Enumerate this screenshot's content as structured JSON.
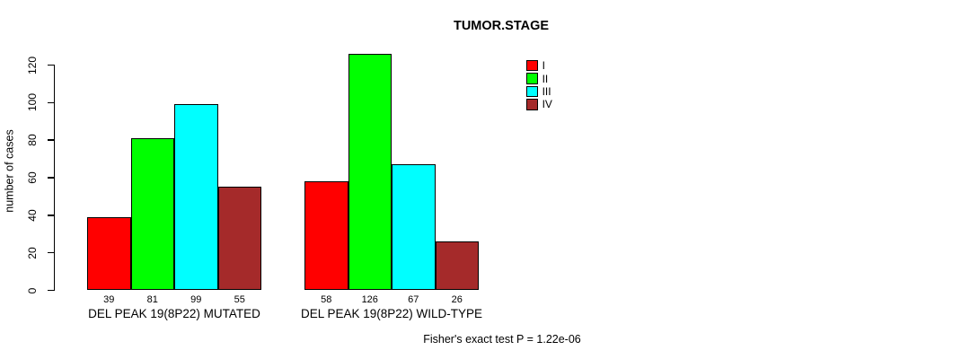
{
  "title": "TUMOR.STAGE",
  "y_axis": {
    "label": "number of cases",
    "ticks": [
      0,
      20,
      40,
      60,
      80,
      100,
      120
    ]
  },
  "legend": {
    "position": "top-right",
    "items": [
      {
        "label": "I",
        "color": "#FF0000"
      },
      {
        "label": "II",
        "color": "#00FF00"
      },
      {
        "label": "III",
        "color": "#00FFFF"
      },
      {
        "label": "IV",
        "color": "#A52A2A"
      }
    ]
  },
  "footnote": "Fisher's exact test P = 1.22e-06",
  "chart_data": {
    "type": "bar",
    "title": "TUMOR.STAGE",
    "xlabel": "",
    "ylabel": "number of cases",
    "series_labels": [
      "I",
      "II",
      "III",
      "IV"
    ],
    "colors": [
      "#FF0000",
      "#00FF00",
      "#00FFFF",
      "#A52A2A"
    ],
    "groups": [
      {
        "label": "DEL PEAK 19(8P22) MUTATED",
        "values": [
          39,
          81,
          99,
          55
        ]
      },
      {
        "label": "DEL PEAK 19(8P22) WILD-TYPE",
        "values": [
          58,
          126,
          67,
          26
        ]
      }
    ],
    "yticks": [
      0,
      20,
      40,
      60,
      80,
      100,
      120
    ],
    "ylim": [
      0,
      130
    ],
    "grid": false,
    "legend_position": "top-right",
    "bar_value_labels": true,
    "annotation": "Fisher's exact test P = 1.22e-06"
  }
}
